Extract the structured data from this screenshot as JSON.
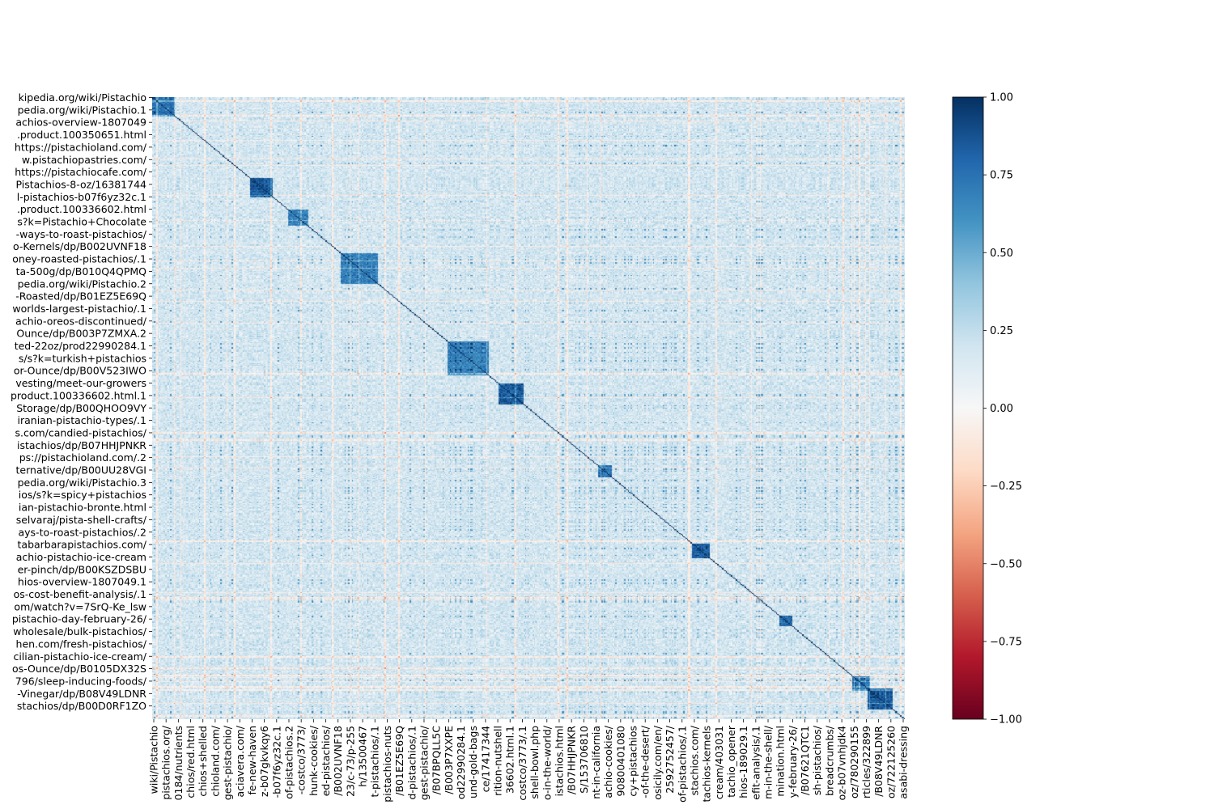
{
  "chart_data": {
    "type": "heatmap",
    "title": "",
    "xlabel": "",
    "ylabel": "",
    "colormap": "RdBu",
    "vmin": -1.0,
    "vmax": 1.0,
    "grid": false,
    "legend": "colorbar-right",
    "matrix_size": 600,
    "diagonal_value": 1.0,
    "colorbar_ticks": [
      "1.00",
      "0.75",
      "0.50",
      "0.25",
      "0.00",
      "−0.25",
      "−0.50",
      "−0.75",
      "−1.00"
    ],
    "colorbar_tick_values": [
      1.0,
      0.75,
      0.5,
      0.25,
      0.0,
      -0.25,
      -0.5,
      -0.75,
      -1.0
    ],
    "row_labels": [
      "kipedia.org/wiki/Pistachio",
      "pedia.org/wiki/Pistachio.1",
      "achios-overview-1807049",
      ".product.100350651.html",
      "https://pistachioland.com/",
      "w.pistachiopastries.com/",
      "https://pistachiocafe.com/",
      "Pistachios-8-oz/16381744",
      "l-pistachios-b07f6yz32c.1",
      ".product.100336602.html",
      "s?k=Pistachio+Chocolate",
      "-ways-to-roast-pistachios/",
      "o-Kernels/dp/B002UVNF18",
      "oney-roasted-pistachios/.1",
      "ta-500g/dp/B010Q4QPMQ",
      "pedia.org/wiki/Pistachio.2",
      "-Roasted/dp/B01EZ5E69Q",
      "worlds-largest-pistachio/.1",
      "achio-oreos-discontinued/",
      "Ounce/dp/B003P7ZMXA.2",
      "ted-22oz/prod22990284.1",
      "s/s?k=turkish+pistachios",
      "or-Ounce/dp/B00V523IWO",
      "vesting/meet-our-growers",
      "product.100336602.html.1",
      "Storage/dp/B00QHOO9VY",
      "iranian-pistachio-types/.1",
      "s.com/candied-pistachios/",
      "istachios/dp/B07HHJPNKR",
      "ps://pistachioland.com/.2",
      "ternative/dp/B00UU28VGI",
      "pedia.org/wiki/Pistachio.3",
      "ios/s?k=spicy+pistachios",
      "ian-pistachio-bronte.html",
      "selvaraj/pista-shell-crafts/",
      "ays-to-roast-pistachios/.2",
      "tabarbarapistachios.com/",
      "achio-pistachio-ice-cream",
      "er-pinch/dp/B00KSZDSBU",
      "hios-overview-1807049.1",
      "os-cost-benefit-analysis/.1",
      "om/watch?v=7SrQ-Ke_lsw",
      "pistachio-day-february-26/",
      "wholesale/bulk-pistachios/",
      "hen.com/fresh-pistachios/",
      "cilian-pistachio-ice-cream/",
      "os-Ounce/dp/B0105DX32S",
      "796/sleep-inducing-foods/",
      "-Vinegar/dp/B08V49LDNR",
      "stachios/dp/B00D0RF1ZO"
    ],
    "col_labels": [
      "wiki/Pistachio",
      "pistachios.org/",
      "0184/nutrients",
      "chios/red.html",
      "chios+shelled",
      "chioland.com/",
      "gest-pistachio/",
      "aciavera.com/",
      "fe-new-haven",
      "z-b07gkvkqy6",
      "-b07f6yz32c.1",
      "of-pistachios.2",
      "-costco/3773/",
      "hunk-cookies/",
      "ed-pistachios/",
      "/B002UVNF18",
      "23/c-73/p-255",
      "h/13500467",
      "t-pistachios/.1",
      "pistachios-nuts",
      "/B01EZ5E69Q",
      "d-pistachios/.1",
      "gest-pistachio/",
      "/B07BPQLL5C",
      "/B003P7XXPE",
      "od22990284.1",
      "und-gold-bags",
      "ce/17417344",
      "rition-nutshell",
      "36602.html.1",
      "costco/3773/.1",
      "shell-bowl.php",
      "o-in-the-world/",
      "istachios.html",
      "/B07HHJPNKR",
      "S/153706810",
      "nt-in-california",
      "achio-cookies/",
      "90800401080",
      "cy+pistachios",
      "-of-the-desert/",
      "osicily.com/en/",
      "2592752457/",
      "of-pistachios/.1",
      "stachios.com/",
      "tachios-kernels",
      "cream/403031",
      "tachio_opener",
      "hios-189029.1",
      "efit-analysis/.1",
      "m-in-the-shell/",
      "mination.html",
      "y-february-26/",
      "/B07621QTC1",
      "sh-pistachios/",
      "breadcrumbs/",
      "oz-b07vnhjdk4",
      "oz/780290155",
      "rticles/322899",
      "/B08V49LDNR",
      "oz/722125260",
      "asabi-dressing"
    ],
    "clusters": [
      {
        "start": 0,
        "end": 18,
        "strength": 0.75
      },
      {
        "start": 78,
        "end": 96,
        "strength": 0.85
      },
      {
        "start": 108,
        "end": 124,
        "strength": 0.7
      },
      {
        "start": 150,
        "end": 180,
        "strength": 0.7
      },
      {
        "start": 235,
        "end": 268,
        "strength": 0.7
      },
      {
        "start": 276,
        "end": 296,
        "strength": 0.85
      },
      {
        "start": 355,
        "end": 366,
        "strength": 0.75
      },
      {
        "start": 430,
        "end": 444,
        "strength": 0.85
      },
      {
        "start": 500,
        "end": 510,
        "strength": 0.8
      },
      {
        "start": 558,
        "end": 572,
        "strength": 0.8
      },
      {
        "start": 570,
        "end": 590,
        "strength": 0.85
      }
    ]
  }
}
